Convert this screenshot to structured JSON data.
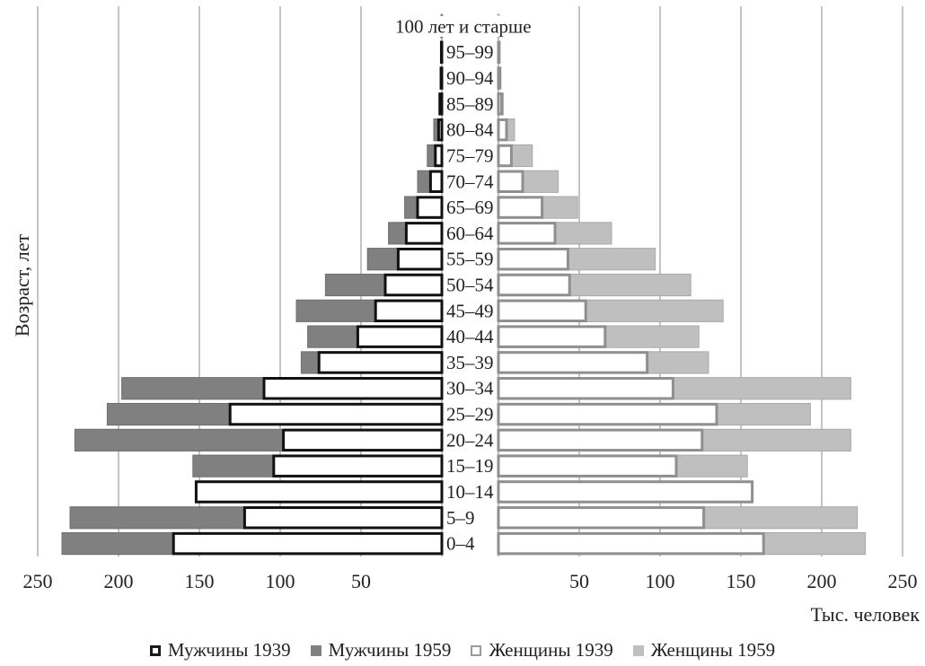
{
  "chart_data": {
    "type": "population-pyramid (horizontal bar)",
    "ylabel": "Возраст, лет",
    "xunit": "Тыс. человек",
    "x_ticks_left": [
      "250",
      "200",
      "150",
      "100",
      "50"
    ],
    "x_ticks_right": [
      "50",
      "100",
      "150",
      "200",
      "250"
    ],
    "xlim": [
      0,
      250
    ],
    "grid": true,
    "age_groups": [
      "0–4",
      "5–9",
      "10–14",
      "15–19",
      "20–24",
      "25–29",
      "30–34",
      "35–39",
      "40–44",
      "45–49",
      "50–54",
      "55–59",
      "60–64",
      "65–69",
      "70–74",
      "75–79",
      "80–84",
      "85–89",
      "90–94",
      "95–99",
      "100 лет и старше"
    ],
    "series": [
      {
        "name": "Мужчины 1939",
        "side": "left",
        "color": "#1a1a1a",
        "values": [
          166,
          122,
          152,
          104,
          98,
          131,
          110,
          76,
          52,
          41,
          35,
          27,
          22,
          15,
          7,
          4,
          2,
          1,
          0.5,
          0.3,
          0.2
        ]
      },
      {
        "name": "Мужчины 1959",
        "side": "left",
        "color": "#808080",
        "values": [
          235,
          230,
          152,
          154,
          227,
          207,
          198,
          87,
          83,
          90,
          72,
          46,
          33,
          23,
          15,
          9,
          5,
          2,
          1,
          0.5,
          0.2
        ]
      },
      {
        "name": "Женщины 1939",
        "side": "right",
        "color": "#9a9a9a",
        "values": [
          164,
          127,
          157,
          110,
          126,
          135,
          108,
          92,
          66,
          54,
          44,
          43,
          35,
          27,
          15,
          8,
          5,
          2,
          1,
          0.5,
          0.2
        ]
      },
      {
        "name": "Женщины 1959",
        "side": "right",
        "color": "#bfbfbf",
        "values": [
          227,
          222,
          155,
          154,
          218,
          193,
          218,
          130,
          124,
          139,
          119,
          97,
          70,
          49,
          37,
          21,
          10,
          3,
          1,
          0.5,
          0.2
        ]
      }
    ]
  },
  "legend": {
    "m1939": "Мужчины 1939",
    "m1959": "Мужчины 1959",
    "f1939": "Женщины 1939",
    "f1959": "Женщины 1959"
  }
}
